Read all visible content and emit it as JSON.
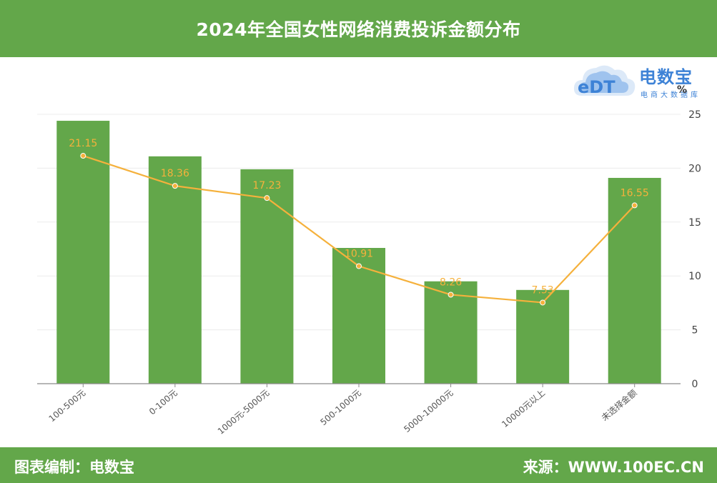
{
  "header": {
    "title": "2024年全国女性网络消费投诉金额分布"
  },
  "logo": {
    "brand": "电数宝",
    "sub": "电商大数据库",
    "mark": "eDT"
  },
  "footer": {
    "left": "图表编制：电数宝",
    "right": "来源：WWW.100EC.CN"
  },
  "colors": {
    "bar": "#63a74a",
    "line": "#f5b13c",
    "header": "#63a74a",
    "logo": "#3d82d6"
  },
  "chart_data": {
    "type": "bar",
    "unit": "%",
    "categories": [
      "100-500元",
      "0-100元",
      "1000元-5000元",
      "500-1000元",
      "5000-10000元",
      "10000元以上",
      "未选择金额"
    ],
    "bar_values": [
      24.4,
      21.1,
      19.9,
      12.6,
      9.5,
      8.7,
      19.1
    ],
    "series": [
      {
        "type": "bar",
        "values": [
          24.4,
          21.1,
          19.9,
          12.6,
          9.5,
          8.7,
          19.1
        ]
      },
      {
        "type": "line",
        "values": [
          21.15,
          18.36,
          17.23,
          10.91,
          8.26,
          7.53,
          16.55
        ],
        "labels": [
          "21.15",
          "18.36",
          "17.23",
          "10.91",
          "8.26",
          "7.53",
          "16.55"
        ]
      }
    ],
    "yaxis": {
      "position": "right",
      "ylim": [
        0,
        25
      ],
      "ticks": [
        0,
        5,
        10,
        15,
        20,
        25
      ]
    },
    "grid": true
  }
}
